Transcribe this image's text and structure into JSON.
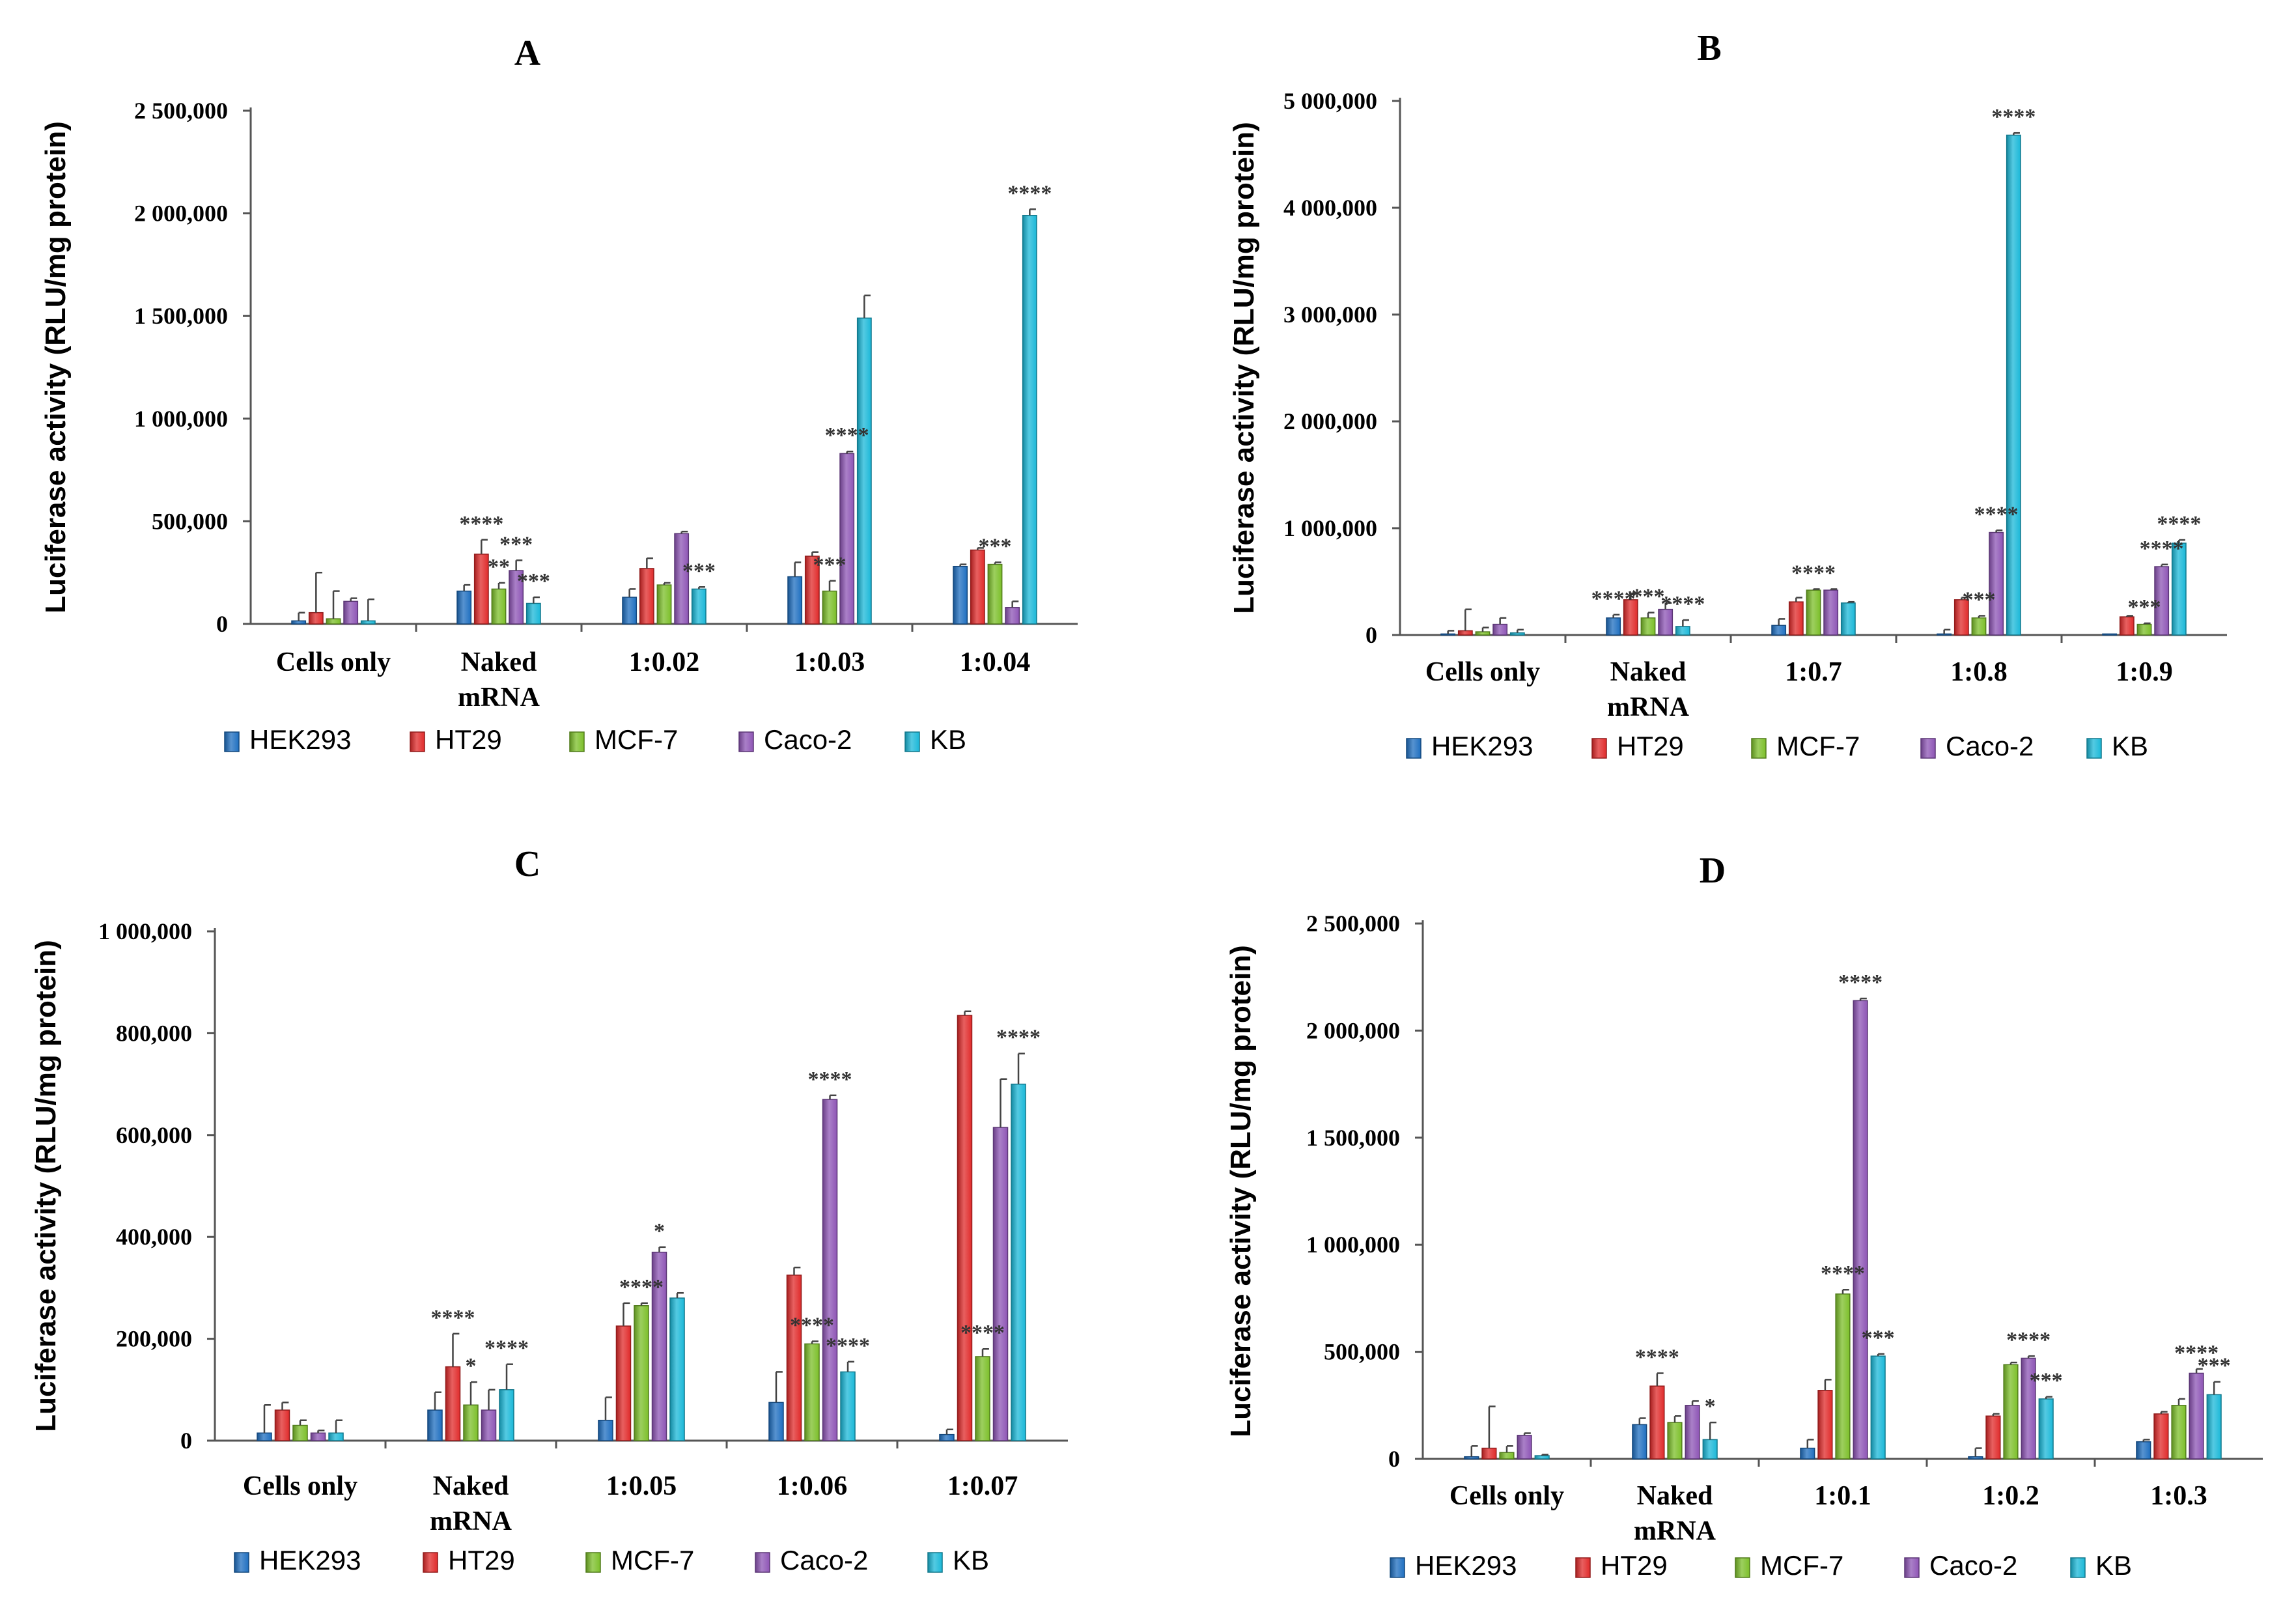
{
  "colors": {
    "HEK293": "#1f6fc0",
    "HT29": "#e02b2b",
    "MCF-7": "#7cbf2a",
    "Caco-2": "#8e55b5",
    "KB": "#1bb8d8"
  },
  "chart_data": [
    {
      "id": "A",
      "type": "bar",
      "title": "A",
      "ylabel": "Luciferase activity (RLU/mg protein)",
      "xlabel": "",
      "ylim": [
        0,
        2500000
      ],
      "yticks": [
        0,
        500000,
        1000000,
        1500000,
        2000000,
        2500000
      ],
      "ytick_labels": [
        "0",
        "500,000",
        "1 000,000",
        "1 500,000",
        "2 000,000",
        "2 500,000"
      ],
      "categories": [
        "Cells only",
        "Naked mRNA",
        "1:0.02",
        "1:0.03",
        "1:0.04"
      ],
      "series": [
        {
          "name": "HEK293",
          "values": [
            15000,
            160000,
            130000,
            230000,
            280000
          ],
          "errors": [
            40000,
            30000,
            40000,
            70000,
            10000
          ]
        },
        {
          "name": "HT29",
          "values": [
            55000,
            340000,
            270000,
            330000,
            360000
          ],
          "errors": [
            195000,
            70000,
            50000,
            20000,
            10000
          ]
        },
        {
          "name": "MCF-7",
          "values": [
            25000,
            170000,
            190000,
            160000,
            290000
          ],
          "errors": [
            135000,
            30000,
            10000,
            50000,
            10000
          ]
        },
        {
          "name": "Caco-2",
          "values": [
            110000,
            260000,
            440000,
            830000,
            80000
          ],
          "errors": [
            15000,
            50000,
            10000,
            10000,
            30000
          ]
        },
        {
          "name": "KB",
          "values": [
            15000,
            100000,
            170000,
            1490000,
            1990000
          ],
          "errors": [
            105000,
            30000,
            10000,
            110000,
            30000
          ]
        }
      ],
      "annotations": [
        {
          "text": "****",
          "category": 1,
          "series": 1
        },
        {
          "text": "**",
          "category": 1,
          "series": 2
        },
        {
          "text": "***",
          "category": 1,
          "series": 3
        },
        {
          "text": "***",
          "category": 1,
          "series": 4
        },
        {
          "text": "***",
          "category": 2,
          "series": 4
        },
        {
          "text": "***",
          "category": 3,
          "series": 2
        },
        {
          "text": "****",
          "category": 3,
          "series": 3
        },
        {
          "text": "***",
          "category": 4,
          "series": 2
        },
        {
          "text": "****",
          "category": 4,
          "series": 4
        }
      ]
    },
    {
      "id": "B",
      "type": "bar",
      "title": "B",
      "ylabel": "Luciferase activity (RLU/mg protein)",
      "xlabel": "",
      "ylim": [
        0,
        5000000
      ],
      "yticks": [
        0,
        1000000,
        2000000,
        3000000,
        4000000,
        5000000
      ],
      "ytick_labels": [
        "0",
        "1 000,000",
        "2 000,000",
        "3 000,000",
        "4 000,000",
        "5 000,000"
      ],
      "categories": [
        "Cells only",
        "Naked mRNA",
        "1:0.7",
        "1:0.8",
        "1:0.9"
      ],
      "series": [
        {
          "name": "HEK293",
          "values": [
            10000,
            160000,
            90000,
            10000,
            10000
          ],
          "errors": [
            30000,
            30000,
            60000,
            40000,
            0
          ]
        },
        {
          "name": "HT29",
          "values": [
            40000,
            330000,
            310000,
            330000,
            170000
          ],
          "errors": [
            200000,
            60000,
            40000,
            20000,
            10000
          ]
        },
        {
          "name": "MCF-7",
          "values": [
            30000,
            160000,
            420000,
            160000,
            100000
          ],
          "errors": [
            40000,
            50000,
            10000,
            20000,
            10000
          ]
        },
        {
          "name": "Caco-2",
          "values": [
            100000,
            240000,
            420000,
            960000,
            640000
          ],
          "errors": [
            60000,
            60000,
            10000,
            20000,
            20000
          ]
        },
        {
          "name": "KB",
          "values": [
            20000,
            80000,
            300000,
            4680000,
            860000
          ],
          "errors": [
            30000,
            60000,
            10000,
            20000,
            30000
          ]
        }
      ],
      "annotations": [
        {
          "text": "****",
          "category": 1,
          "series": 0
        },
        {
          "text": "***",
          "category": 1,
          "series": 2
        },
        {
          "text": "****",
          "category": 1,
          "series": 4
        },
        {
          "text": "****",
          "category": 2,
          "series": 2
        },
        {
          "text": "***",
          "category": 3,
          "series": 2
        },
        {
          "text": "****",
          "category": 3,
          "series": 3
        },
        {
          "text": "****",
          "category": 3,
          "series": 4
        },
        {
          "text": "***",
          "category": 4,
          "series": 2
        },
        {
          "text": "****",
          "category": 4,
          "series": 3
        },
        {
          "text": "****",
          "category": 4,
          "series": 4
        }
      ]
    },
    {
      "id": "C",
      "type": "bar",
      "title": "C",
      "ylabel": "Luciferase activity (RLU/mg protein)",
      "xlabel": "",
      "ylim": [
        0,
        1000000
      ],
      "yticks": [
        0,
        200000,
        400000,
        600000,
        800000,
        1000000
      ],
      "ytick_labels": [
        "0",
        "200,000",
        "400,000",
        "600,000",
        "800,000",
        "1 000,000"
      ],
      "categories": [
        "Cells only",
        "Naked mRNA",
        "1:0.05",
        "1:0.06",
        "1:0.07"
      ],
      "series": [
        {
          "name": "HEK293",
          "values": [
            15000,
            60000,
            40000,
            75000,
            12000
          ],
          "errors": [
            55000,
            35000,
            45000,
            60000,
            10000
          ]
        },
        {
          "name": "HT29",
          "values": [
            60000,
            145000,
            225000,
            325000,
            835000
          ],
          "errors": [
            15000,
            65000,
            45000,
            15000,
            8000
          ]
        },
        {
          "name": "MCF-7",
          "values": [
            30000,
            70000,
            265000,
            190000,
            165000
          ],
          "errors": [
            10000,
            45000,
            5000,
            5000,
            15000
          ]
        },
        {
          "name": "Caco-2",
          "values": [
            15000,
            60000,
            370000,
            670000,
            615000
          ],
          "errors": [
            5000,
            40000,
            10000,
            8000,
            95000
          ]
        },
        {
          "name": "KB",
          "values": [
            15000,
            100000,
            280000,
            135000,
            700000
          ],
          "errors": [
            25000,
            50000,
            10000,
            20000,
            60000
          ]
        }
      ],
      "annotations": [
        {
          "text": "****",
          "category": 1,
          "series": 1
        },
        {
          "text": "*",
          "category": 1,
          "series": 2
        },
        {
          "text": "****",
          "category": 1,
          "series": 4
        },
        {
          "text": "****",
          "category": 2,
          "series": 2
        },
        {
          "text": "*",
          "category": 2,
          "series": 3
        },
        {
          "text": "****",
          "category": 3,
          "series": 2
        },
        {
          "text": "****",
          "category": 3,
          "series": 3
        },
        {
          "text": "****",
          "category": 3,
          "series": 4
        },
        {
          "text": "****",
          "category": 4,
          "series": 2
        },
        {
          "text": "****",
          "category": 4,
          "series": 4
        }
      ]
    },
    {
      "id": "D",
      "type": "bar",
      "title": "D",
      "ylabel": "Luciferase activity (RLU/mg protein)",
      "xlabel": "",
      "ylim": [
        0,
        2500000
      ],
      "yticks": [
        0,
        500000,
        1000000,
        1500000,
        2000000,
        2500000
      ],
      "ytick_labels": [
        "0",
        "500,000",
        "1 000,000",
        "1 500,000",
        "2 000,000",
        "2 500,000"
      ],
      "categories": [
        "Cells only",
        "Naked mRNA",
        "1:0.1",
        "1:0.2",
        "1:0.3"
      ],
      "series": [
        {
          "name": "HEK293",
          "values": [
            10000,
            160000,
            50000,
            10000,
            80000
          ],
          "errors": [
            50000,
            30000,
            40000,
            40000,
            10000
          ]
        },
        {
          "name": "HT29",
          "values": [
            50000,
            340000,
            320000,
            200000,
            210000
          ],
          "errors": [
            195000,
            60000,
            50000,
            10000,
            10000
          ]
        },
        {
          "name": "MCF-7",
          "values": [
            30000,
            170000,
            770000,
            440000,
            250000
          ],
          "errors": [
            30000,
            30000,
            20000,
            10000,
            30000
          ]
        },
        {
          "name": "Caco-2",
          "values": [
            110000,
            250000,
            2140000,
            470000,
            400000
          ],
          "errors": [
            10000,
            20000,
            10000,
            10000,
            20000
          ]
        },
        {
          "name": "KB",
          "values": [
            15000,
            90000,
            480000,
            280000,
            300000
          ],
          "errors": [
            5000,
            80000,
            10000,
            10000,
            60000
          ]
        }
      ],
      "annotations": [
        {
          "text": "****",
          "category": 1,
          "series": 1
        },
        {
          "text": "*",
          "category": 1,
          "series": 4
        },
        {
          "text": "****",
          "category": 2,
          "series": 2
        },
        {
          "text": "****",
          "category": 2,
          "series": 3
        },
        {
          "text": "***",
          "category": 2,
          "series": 4
        },
        {
          "text": "****",
          "category": 3,
          "series": 3
        },
        {
          "text": "***",
          "category": 3,
          "series": 4
        },
        {
          "text": "****",
          "category": 4,
          "series": 3
        },
        {
          "text": "***",
          "category": 4,
          "series": 4
        }
      ]
    }
  ]
}
